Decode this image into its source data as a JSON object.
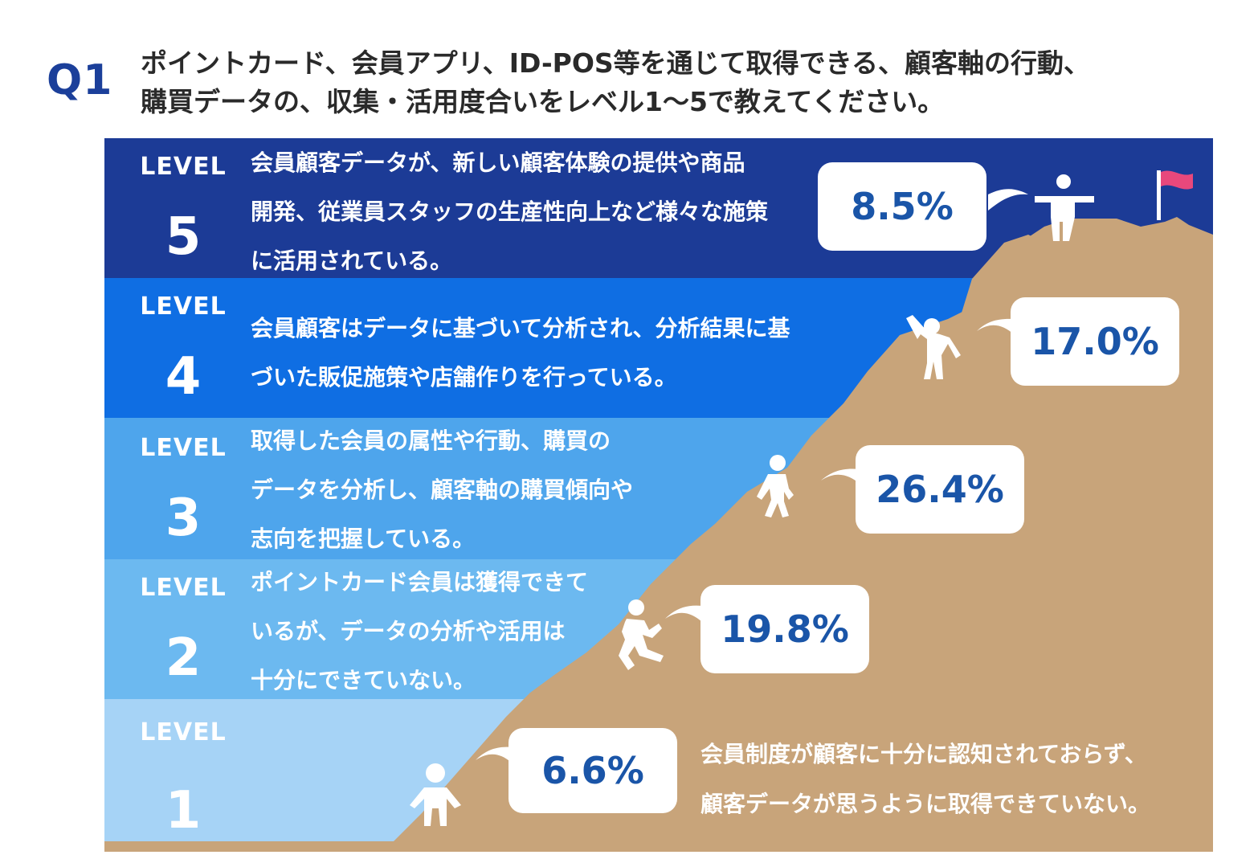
{
  "header": {
    "q_label": "Q1",
    "question_line1": "ポイントカード、会員アプリ、ID-POS等を通じて取得できる、顧客軸の行動、",
    "question_line2": "購買データの、収集・活用度合いをレベル1〜5で教えてください。"
  },
  "colors": {
    "level5": "#1c3b96",
    "level4": "#0f6ee3",
    "level3": "#4ea5ec",
    "level2": "#6cb9f0",
    "level1": "#a6d3f6",
    "mountain": "#c8a47a",
    "percent_text": "#1a55a8",
    "q_label": "#1b3f9a",
    "flag": "#e8487c"
  },
  "icons": [
    "person-standing-arms-raised-icon",
    "person-waving-icon",
    "person-walking-icon",
    "person-climbing-icon",
    "person-standing-icon",
    "flag-icon"
  ],
  "chart_data": {
    "type": "bar",
    "title": "",
    "categories": [
      "LEVEL 5",
      "LEVEL 4",
      "LEVEL 3",
      "LEVEL 2",
      "LEVEL 1"
    ],
    "values": [
      8.5,
      17.0,
      26.4,
      19.8,
      6.6
    ],
    "value_labels": [
      "8.5%",
      "17.0%",
      "26.4%",
      "19.8%",
      "6.6%"
    ],
    "unit": "%",
    "levels": [
      {
        "lv": "LEVEL",
        "num": "5",
        "desc": [
          "会員顧客データが、新しい顧客体験の提供や商品",
          "開発、従業員スタッフの生産性向上など様々な施策",
          "に活用されている。"
        ]
      },
      {
        "lv": "LEVEL",
        "num": "4",
        "desc": [
          "会員顧客はデータに基づいて分析され、分析結果に基",
          "づいた販促施策や店舗作りを行っている。"
        ]
      },
      {
        "lv": "LEVEL",
        "num": "3",
        "desc": [
          "取得した会員の属性や行動、購買の",
          "データを分析し、顧客軸の購買傾向や",
          "志向を把握している。"
        ]
      },
      {
        "lv": "LEVEL",
        "num": "2",
        "desc": [
          "ポイントカード会員は獲得できて",
          "いるが、データの分析や活用は",
          "十分にできていない。"
        ]
      },
      {
        "lv": "LEVEL",
        "num": "1",
        "desc": [
          "会員制度が顧客に十分に認知されておらず、",
          "顧客データが思うように取得できていない。"
        ]
      }
    ]
  }
}
